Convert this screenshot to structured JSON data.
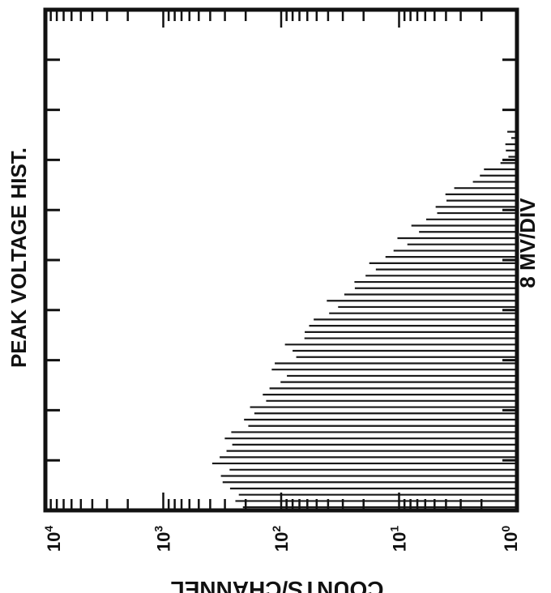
{
  "chart_data": {
    "type": "bar",
    "orientation": "horizontal",
    "title": "PEAK VOLTAGE HIST.",
    "xlabel": "COUNTS/CHANNEL",
    "ylabel": "8 MV/DIV",
    "x_scale": "log",
    "x_ticks": [
      {
        "label": "10",
        "sup": "4",
        "value": 10000
      },
      {
        "label": "10",
        "sup": "3",
        "value": 1000
      },
      {
        "label": "10",
        "sup": "2",
        "value": 100
      },
      {
        "label": "10",
        "sup": "1",
        "value": 10
      },
      {
        "label": "10",
        "sup": "0",
        "value": 1
      }
    ],
    "xlim": [
      1,
      10000
    ],
    "y_divisions": 10,
    "grid": false,
    "legend": "none",
    "channels_per_division": 8,
    "envelope_divisions": [
      0.0,
      0.5,
      1.0,
      1.5,
      2.0,
      2.5,
      3.0,
      3.5,
      4.0,
      4.5,
      5.0,
      5.5,
      6.0,
      6.5,
      7.0,
      7.5,
      8.0
    ],
    "envelope_counts": [
      200,
      320,
      330,
      260,
      180,
      120,
      90,
      70,
      40,
      25,
      15,
      8,
      5,
      3,
      1.5,
      1,
      1
    ],
    "colors": {
      "ink": "#111111",
      "bar": "#1a1a1a",
      "paper": "#ffffff"
    }
  }
}
